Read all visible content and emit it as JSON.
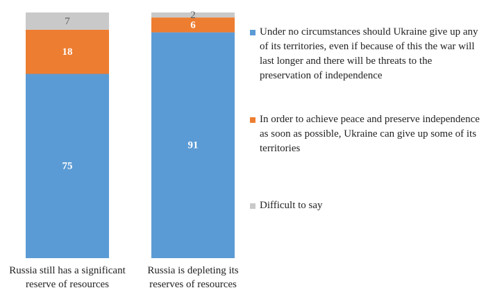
{
  "chart_data": {
    "type": "bar",
    "stacked": true,
    "normalized": true,
    "categories": [
      "Russia still has a significant reserve of resources",
      "Russia is depleting its reserves of resources"
    ],
    "category_lines": [
      [
        "Russia still has a significant",
        "reserve of resources"
      ],
      [
        "Russia is depleting its",
        "reserves of resources"
      ]
    ],
    "series": [
      {
        "name": "Under no circumstances should Ukraine give up any of its territories, even if because of this the war will last longer and there will be threats to the preservation of independence",
        "color": "#5b9bd5",
        "label_color": "#ffffff",
        "label_bold": true,
        "values": [
          75,
          91
        ]
      },
      {
        "name": "In order to achieve peace and preserve independence as soon as possible, Ukraine can give up some of its territories",
        "color": "#ed7d31",
        "label_color": "#ffffff",
        "label_bold": true,
        "values": [
          18,
          6
        ]
      },
      {
        "name": "Difficult to say",
        "color": "#c9c9c9",
        "label_color": "#595959",
        "label_bold": false,
        "values": [
          7,
          2
        ]
      }
    ],
    "legend_position": "right",
    "grid": false
  }
}
